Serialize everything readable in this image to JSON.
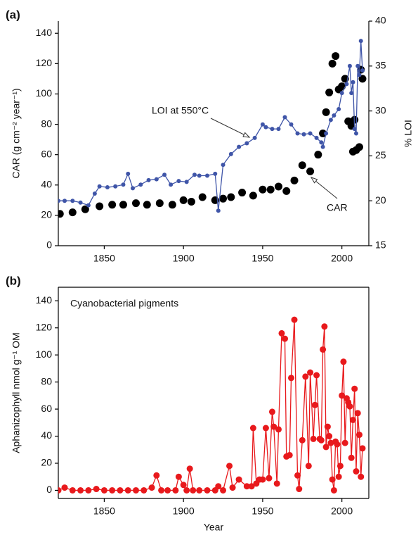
{
  "chart_data": [
    {
      "type": "line",
      "panel_label": "(a)",
      "y_label": "CAR (g cm⁻² year⁻¹)",
      "y2_label": "% LOI",
      "xlim": [
        1821,
        2017
      ],
      "xticks": [
        1850,
        1900,
        1950,
        2000
      ],
      "ylim": [
        0,
        148
      ],
      "yticks": [
        0,
        20,
        40,
        60,
        80,
        100,
        120,
        140
      ],
      "y2lim": [
        15,
        40
      ],
      "y2ticks": [
        15,
        20,
        25,
        30,
        35,
        40
      ],
      "series": [
        {
          "name": "CAR",
          "color": "#000000",
          "mode": "markers",
          "x": [
            1822,
            1830,
            1838,
            1847,
            1855,
            1862,
            1870,
            1877,
            1885,
            1893,
            1900,
            1905,
            1912,
            1920,
            1925,
            1930,
            1937,
            1944,
            1950,
            1955,
            1960,
            1965,
            1970,
            1975,
            1980,
            1985,
            1988,
            1990,
            1992,
            1994,
            1996,
            1998,
            2000,
            2002,
            2004,
            2006,
            2007,
            2008,
            2009,
            2011,
            2012,
            2013
          ],
          "values": [
            21,
            22,
            24,
            26,
            27,
            27,
            28,
            27,
            28,
            27,
            30,
            29,
            32,
            30,
            31,
            32,
            35,
            33,
            37,
            37,
            39,
            36,
            43,
            53,
            49,
            60,
            74,
            88,
            101,
            120,
            125,
            103,
            105,
            110,
            82,
            79,
            62,
            83,
            63,
            65,
            116,
            110
          ]
        },
        {
          "name": "LOI at 550°C",
          "color": "#3f55a8",
          "mode": "lines+markers",
          "axis": "y2",
          "x": [
            1821,
            1825,
            1830,
            1835,
            1840,
            1844,
            1847,
            1852,
            1857,
            1862,
            1865,
            1868,
            1873,
            1878,
            1883,
            1888,
            1892,
            1897,
            1902,
            1907,
            1910,
            1915,
            1920,
            1922,
            1925,
            1930,
            1935,
            1940,
            1945,
            1950,
            1952,
            1956,
            1960,
            1964,
            1968,
            1972,
            1976,
            1980,
            1984,
            1987,
            1988,
            1990,
            1993,
            1995,
            1998,
            2000,
            2003,
            2005,
            2006,
            2007,
            2008,
            2009,
            2010,
            2011,
            2012,
            2013
          ],
          "values": [
            20,
            20,
            20,
            19.8,
            19.5,
            20.8,
            21.6,
            21.5,
            21.6,
            21.8,
            23,
            21.4,
            21.8,
            22.3,
            22.4,
            22.9,
            21.8,
            22.2,
            22.1,
            22.9,
            22.8,
            22.8,
            23,
            18.9,
            24,
            25.2,
            26,
            26.4,
            27,
            28.5,
            28.2,
            28,
            28,
            29.3,
            28.5,
            27.5,
            27.4,
            27.5,
            27,
            26.5,
            26,
            27.5,
            29,
            29.5,
            30.2,
            32,
            33,
            35,
            32,
            33.2,
            28,
            27.5,
            35,
            34,
            37.8,
            34.5
          ]
        }
      ]
    },
    {
      "type": "line",
      "panel_label": "(b)",
      "y_label": "Aphanizophyll nmol g⁻¹ OM",
      "x_label": "Year",
      "xlim": [
        1821,
        2017
      ],
      "xticks": [
        1850,
        1900,
        1950,
        2000
      ],
      "ylim": [
        -6,
        150
      ],
      "yticks": [
        0,
        20,
        40,
        60,
        80,
        100,
        120,
        140
      ],
      "series": [
        {
          "name": "Cyanobacterial pigments",
          "color": "#e8191c",
          "mode": "lines+markers",
          "x": [
            1821,
            1825,
            1830,
            1835,
            1840,
            1845,
            1850,
            1855,
            1860,
            1865,
            1870,
            1875,
            1880,
            1883,
            1886,
            1890,
            1895,
            1897,
            1900,
            1902,
            1904,
            1906,
            1910,
            1915,
            1920,
            1922,
            1925,
            1929,
            1931,
            1935,
            1940,
            1943,
            1944,
            1946,
            1948,
            1950,
            1952,
            1954,
            1956,
            1957,
            1959,
            1960,
            1962,
            1964,
            1965,
            1967,
            1968,
            1970,
            1972,
            1973,
            1975,
            1977,
            1979,
            1980,
            1982,
            1983,
            1984,
            1986,
            1987,
            1988,
            1989,
            1990,
            1991,
            1992,
            1993,
            1994,
            1995,
            1996,
            1997,
            1998,
            1999,
            2000,
            2001,
            2002,
            2003,
            2004,
            2005,
            2006,
            2007,
            2008,
            2009,
            2010,
            2011,
            2012,
            2013
          ],
          "values": [
            0,
            2,
            0,
            0,
            0,
            1,
            0,
            0,
            0,
            0,
            0,
            0,
            2,
            11,
            0,
            0,
            0,
            10,
            4,
            0,
            16,
            0,
            0,
            0,
            0,
            3,
            0,
            18,
            2,
            8,
            3,
            3,
            46,
            5,
            8,
            8,
            46,
            9,
            58,
            47,
            5,
            45,
            116,
            112,
            25,
            26,
            83,
            126,
            11,
            1,
            37,
            84,
            18,
            87,
            38,
            63,
            85,
            38,
            37,
            104,
            121,
            32,
            47,
            40,
            35,
            8,
            0,
            36,
            34,
            10,
            18,
            70,
            95,
            35,
            68,
            65,
            62,
            24,
            52,
            75,
            14,
            57,
            41,
            10,
            31
          ]
        }
      ]
    }
  ]
}
